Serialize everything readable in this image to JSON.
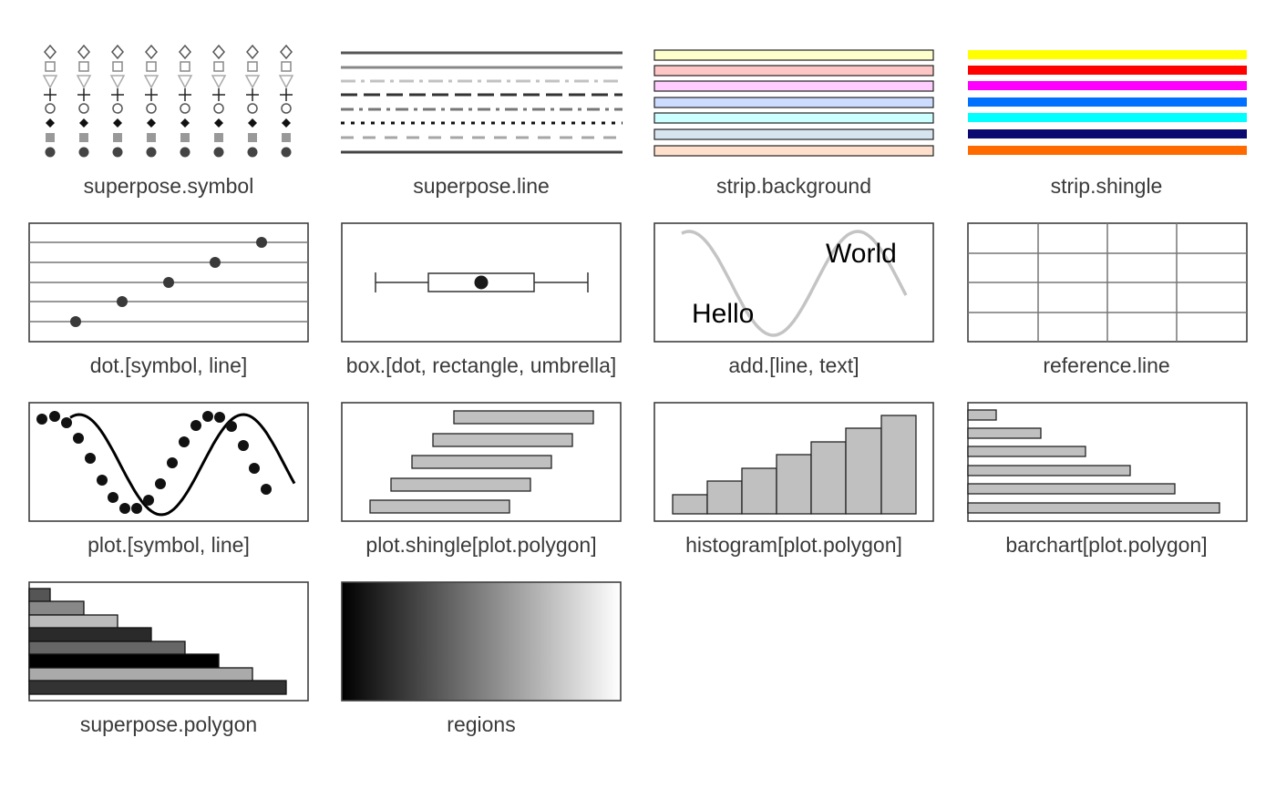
{
  "panels": [
    {
      "key": "superpose_symbol",
      "label": "superpose.symbol"
    },
    {
      "key": "superpose_line",
      "label": "superpose.line"
    },
    {
      "key": "strip_background",
      "label": "strip.background"
    },
    {
      "key": "strip_shingle",
      "label": "strip.shingle"
    },
    {
      "key": "dot",
      "label": "dot.[symbol, line]"
    },
    {
      "key": "box",
      "label": "box.[dot, rectangle, umbrella]"
    },
    {
      "key": "add",
      "label": "add.[line, text]",
      "text_left": "Hello",
      "text_right": "World"
    },
    {
      "key": "reference_line",
      "label": "reference.line"
    },
    {
      "key": "plot",
      "label": "plot.[symbol, line]"
    },
    {
      "key": "plot_shingle",
      "label": "plot.shingle[plot.polygon]"
    },
    {
      "key": "histogram",
      "label": "histogram[plot.polygon]"
    },
    {
      "key": "barchart",
      "label": "barchart[plot.polygon]"
    },
    {
      "key": "superpose_polygon",
      "label": "superpose.polygon"
    },
    {
      "key": "regions",
      "label": "regions"
    }
  ],
  "colors": {
    "strip_background": [
      "#ffffcc",
      "#ffc6c6",
      "#ffccff",
      "#ccdcff",
      "#ccffff",
      "#d6e4f0",
      "#ffe0cc"
    ],
    "strip_shingle": [
      "#ffff00",
      "#ff0000",
      "#ff00ff",
      "#0070ff",
      "#00ffff",
      "#0a0a70",
      "#ff6a00"
    ],
    "superpose_polygon": [
      "#555555",
      "#888888",
      "#bbbbbb",
      "#2a2a2a",
      "#666666",
      "#000000",
      "#aaaaaa",
      "#333333"
    ],
    "regions_gradient": [
      "#000000",
      "#ffffff"
    ],
    "grey_fill": "#c0c0c0"
  }
}
